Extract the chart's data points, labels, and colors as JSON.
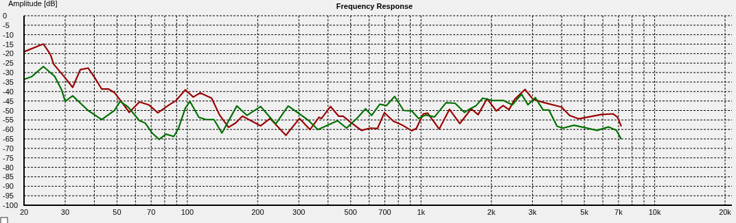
{
  "chart_data": {
    "type": "line",
    "title": "Frequency Response",
    "ylabel": "Amplitude [dB]",
    "log": "x",
    "grid": true,
    "xlim": [
      20,
      20000
    ],
    "xticks": [
      20,
      30,
      {
        "value": 40,
        "label": null
      },
      50,
      {
        "value": 60,
        "label": null
      },
      70,
      {
        "value": 80,
        "label": null
      },
      {
        "value": 90,
        "label": null
      },
      100,
      200,
      300,
      {
        "value": 400,
        "label": null
      },
      500,
      {
        "value": 600,
        "label": null
      },
      700,
      {
        "value": 800,
        "label": null
      },
      {
        "value": 900,
        "label": null
      },
      {
        "value": 1000,
        "label": "1k"
      },
      {
        "value": 2000,
        "label": "2k"
      },
      {
        "value": 3000,
        "label": "3k"
      },
      {
        "value": 4000,
        "label": null
      },
      {
        "value": 5000,
        "label": "5k"
      },
      {
        "value": 6000,
        "label": null
      },
      {
        "value": 7000,
        "label": "7k"
      },
      {
        "value": 8000,
        "label": null
      },
      {
        "value": 9000,
        "label": null
      },
      {
        "value": 10000,
        "label": "10k"
      },
      {
        "value": 20000,
        "label": "20k"
      }
    ],
    "ylim": [
      -100,
      0
    ],
    "yticks": [
      -100,
      -95,
      -90,
      -85,
      -80,
      -75,
      -70,
      -65,
      -60,
      -55,
      -50,
      -45,
      -40,
      -35,
      -30,
      -25,
      -20,
      -15,
      -10,
      -5,
      0
    ],
    "series": [
      {
        "color": "#990000",
        "x": [
          20,
          24.2,
          25.9,
          26.8,
          30,
          32.3,
          34.8,
          37.6,
          40.2,
          43,
          46,
          48.7,
          52.1,
          56.4,
          62.4,
          68.3,
          74.8,
          83.7,
          89.6,
          98,
          106,
          113.5,
          127,
          137.4,
          150,
          161,
          172,
          206,
          226,
          264,
          302,
          335,
          366,
          375,
          410,
          444,
          464,
          497,
          556,
          608,
          651,
          697,
          762,
          834,
          912,
          955,
          1022,
          1068,
          1196,
          1324,
          1466,
          1640,
          1755,
          1918,
          2100,
          2248,
          2380,
          2518,
          2786,
          3014,
          3374,
          3995,
          4324,
          4732,
          5930,
          6634,
          6936,
          7178
        ],
        "values": [
          -19,
          -14.9,
          -20.3,
          -25.6,
          -32.8,
          -37.8,
          -28.5,
          -27.6,
          -32.8,
          -38.7,
          -38.7,
          -40.5,
          -45.2,
          -51,
          -45.5,
          -47,
          -51.2,
          -47,
          -44.7,
          -39.1,
          -42.9,
          -40.7,
          -43.5,
          -52.4,
          -58.9,
          -56.6,
          -53,
          -58.1,
          -54.2,
          -63.1,
          -54.2,
          -60.1,
          -53.6,
          -54.2,
          -47.9,
          -53,
          -53,
          -56,
          -60.5,
          -59.3,
          -59.5,
          -51.2,
          -55.7,
          -57.8,
          -60.7,
          -59.5,
          -51.8,
          -51.4,
          -59.8,
          -49.4,
          -56.9,
          -49.1,
          -52.2,
          -43.8,
          -50.2,
          -47.4,
          -49.6,
          -44.1,
          -38.9,
          -44.1,
          -45.9,
          -48.2,
          -52.6,
          -54.4,
          -52.1,
          -51.8,
          -53.6,
          -58.1
        ]
      },
      {
        "color": "#007000",
        "x": [
          20,
          21.6,
          24.2,
          27.1,
          29,
          30,
          32.3,
          37.6,
          43,
          48.7,
          51.6,
          55.8,
          62.4,
          66,
          70.7,
          75.7,
          81,
          87.5,
          91.6,
          98,
          102.6,
          112,
          120,
          130,
          140.6,
          162.8,
          180,
          206,
          239,
          270,
          302,
          331,
          362,
          439,
          480,
          537,
          579,
          615,
          666,
          712,
          771,
          843,
          912,
          977,
          1045,
          1143,
          1280,
          1400,
          1533,
          1640,
          1716,
          1836,
          2009,
          2248,
          2460,
          2692,
          2868,
          3083,
          3334,
          3530,
          3820,
          4041,
          4521,
          4950,
          5667,
          6340,
          6856,
          7178
        ],
        "values": [
          -33.6,
          -32.1,
          -26.8,
          -32.1,
          -39.3,
          -45.2,
          -42.3,
          -50,
          -54.8,
          -50,
          -45.2,
          -48.2,
          -55.4,
          -56.6,
          -61.9,
          -65.3,
          -62.5,
          -63.7,
          -59.5,
          -48.8,
          -45.2,
          -53.6,
          -54.8,
          -54.8,
          -61.9,
          -47.6,
          -52.6,
          -47.9,
          -57.1,
          -47.6,
          -51.8,
          -55.4,
          -60.1,
          -55.4,
          -59.3,
          -53.6,
          -49.1,
          -52.6,
          -46.7,
          -47.4,
          -42.6,
          -50,
          -50.2,
          -54.2,
          -52.4,
          -53.4,
          -45.9,
          -46.2,
          -51,
          -48.8,
          -47.6,
          -43.5,
          -44.7,
          -44.7,
          -47,
          -41.4,
          -47,
          -43.2,
          -49.8,
          -49.8,
          -58.3,
          -59.3,
          -57.8,
          -58.9,
          -60.5,
          -58.7,
          -60.5,
          -64.9
        ]
      }
    ]
  }
}
